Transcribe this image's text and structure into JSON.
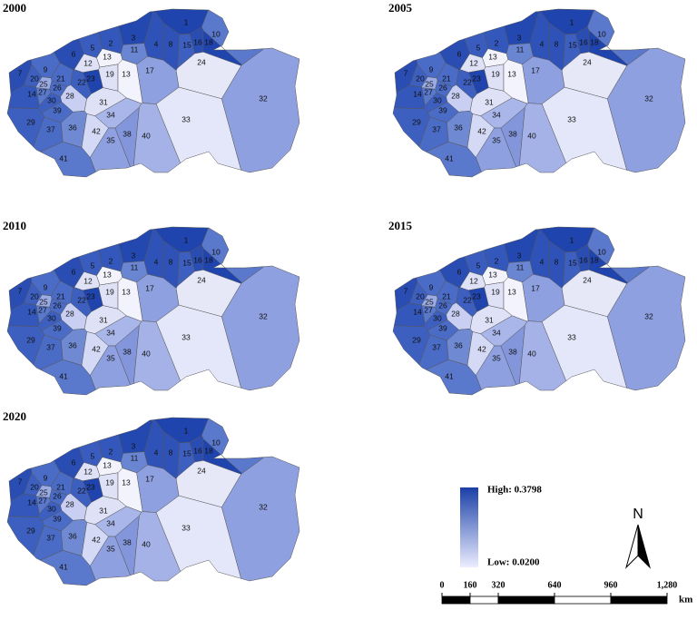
{
  "panels": [
    {
      "title": "2000"
    },
    {
      "title": "2005"
    },
    {
      "title": "2010"
    },
    {
      "title": "2015"
    },
    {
      "title": "2020"
    }
  ],
  "regions": {
    "labels": [
      "1",
      "10",
      "16",
      "18",
      "15",
      "8",
      "4",
      "3",
      "11",
      "2",
      "5",
      "6",
      "9",
      "12",
      "13",
      "7",
      "20",
      "25",
      "27",
      "14",
      "21",
      "22",
      "23",
      "19",
      "13",
      "17",
      "24",
      "26",
      "30",
      "39",
      "28",
      "29",
      "37",
      "36",
      "31",
      "34",
      "42",
      "35",
      "38",
      "40",
      "33",
      "32",
      "41"
    ],
    "colors": [
      "#1f44ad",
      "#5a78cc",
      "#2a4db3",
      "#1f44ad",
      "#3d5fc0",
      "#2f52b8",
      "#2f52b8",
      "#2349b0",
      "#6a86d2",
      "#3357ba",
      "#3a5cbf",
      "#2a4db3",
      "#4a6cc7",
      "#dfe2f7",
      "#f2f3fc",
      "#2a4db3",
      "#3d5fc0",
      "#9aabe6",
      "#5a78cc",
      "#3357ba",
      "#4a6cc7",
      "#3d5fc0",
      "#1f44ad",
      "#dfe2f7",
      "#f2f3fc",
      "#8ea0e0",
      "#e6e8f8",
      "#4a6cc7",
      "#3d5fc0",
      "#4a6cc7",
      "#c8cff2",
      "#3d5fc0",
      "#4a6cc7",
      "#6f8ad3",
      "#dfe2f7",
      "#a9b6ea",
      "#d4d9f5",
      "#8ea0e0",
      "#8396dc",
      "#a4b2e8",
      "#e4e7f9",
      "#8ea0e0",
      "#5a78cc"
    ]
  },
  "legend": {
    "high": "High: 0.3798",
    "low": "Low: 0.0200",
    "high_color": "#1a3fa8",
    "low_color": "#eceeff"
  },
  "north": "N",
  "scale": {
    "ticks": [
      0,
      160,
      320,
      640,
      960,
      {
        "value": 1280,
        "label": "1,280"
      }
    ],
    "unit": "km"
  }
}
